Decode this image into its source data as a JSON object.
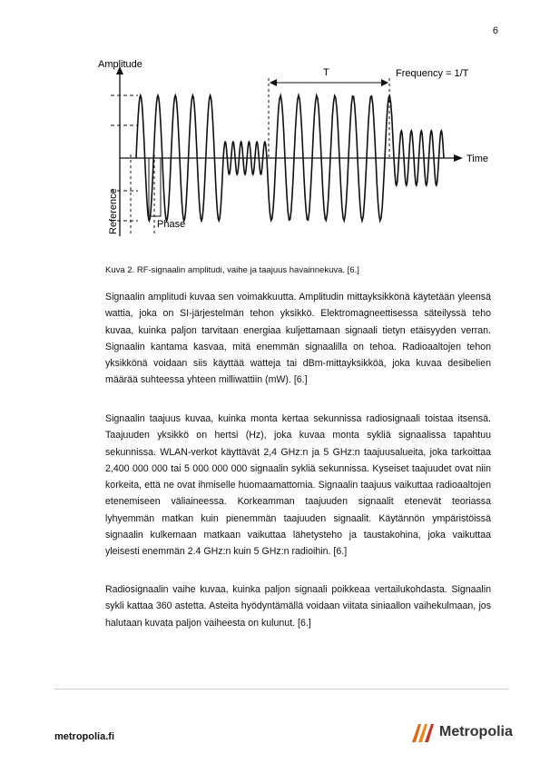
{
  "page_number": "6",
  "figure": {
    "amplitude_label": "Amplitude",
    "time_label": "Time",
    "period_label": "T",
    "frequency_label": "Frequency = 1/T",
    "reference_label": "Reference",
    "phase_label": "Phase"
  },
  "caption": "Kuva 2.   RF-signaalin amplitudi, vaihe ja taajuus havainnekuva. [6.]",
  "paragraphs": [
    "Signaalin amplitudi kuvaa sen voimakkuutta. Amplitudin mittayksikkönä käytetään yleensä wattia, joka on SI-järjestelmän tehon yksikkö. Elektromagneettisessa säteilyssä teho kuvaa, kuinka paljon tarvitaan energiaa kuljettamaan signaali tietyn etäisyyden verran. Signaalin kantama kasvaa, mitä enemmän signaalilla on tehoa. Radioaaltojen tehon yksikkönä voidaan siis käyttää watteja tai dBm-mittayksikköä, joka kuvaa desibelien määrää suhteessa yhteen milliwattiin (mW). [6.]",
    "Signaalin taajuus kuvaa, kuinka monta kertaa sekunnissa radiosignaali toistaa itsensä. Taajuuden yksikkö on hertsi (Hz), joka kuvaa monta sykliä signaalissa tapahtuu sekunnissa. WLAN-verkot käyttävät 2,4 GHz:n ja 5 GHz:n taajuusalueita, joka tarkoittaa 2,400 000 000 tai 5 000 000 000 signaalin sykliä sekunnissa. Kyseiset taajuudet ovat niin korkeita, että ne ovat ihmiselle huomaamattomia. Signaalin taajuus vaikuttaa radioaaltojen etenemiseen väliaineessa. Korkeamman taajuuden signaalit etenevät teoriassa lyhyemmän matkan kuin pienemmän taajuuden signaalit. Käytännön ympäristöissä signaalin kulkemaan matkaan vaikuttaa lähetysteho ja taustakohina, joka vaikuttaa yleisesti enemmän 2.4 GHz:n kuin 5 GHz:n radioihin. [6.]",
    "Radiosignaalin vaihe kuvaa, kuinka paljon signaali poikkeaa vertailukohdasta. Signaalin sykli kattaa 360 astetta. Asteita hyödyntämällä voidaan viitata siniaallon vaihekulmaan, jos halutaan kuvata paljon vaiheesta on kulunut. [6.]"
  ],
  "footer": {
    "site": "metropolia.fi",
    "logo_text": "Metropolia",
    "logo_color": "#d86a1e"
  }
}
